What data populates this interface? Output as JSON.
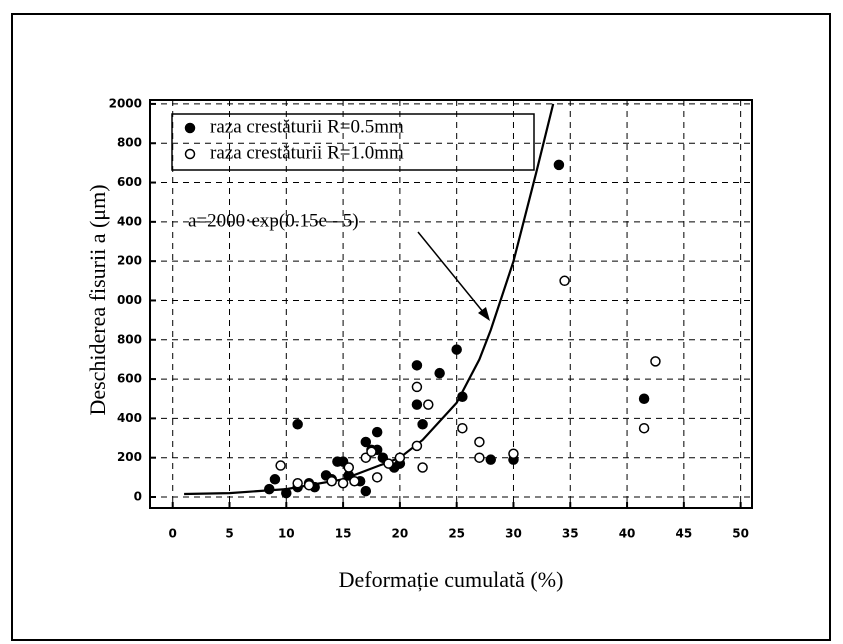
{
  "chart_data": {
    "type": "scatter",
    "xlabel": "Deformație cumulată (%)",
    "ylabel": "Deschiderea fisurii  a (μm)",
    "xlim": [
      -2,
      51
    ],
    "ylim": [
      -56,
      2020
    ],
    "xticks": [
      0,
      5,
      10,
      15,
      20,
      25,
      30,
      35,
      40,
      45,
      50
    ],
    "yticks": [
      0,
      {
        "value": 200,
        "label": "200"
      },
      {
        "value": 400,
        "label": "400"
      },
      {
        "value": 600,
        "label": "600"
      },
      {
        "value": 800,
        "label": "800"
      },
      {
        "value": 1000,
        "label": "000"
      },
      {
        "value": 1200,
        "label": "200"
      },
      {
        "value": 1400,
        "label": "400"
      },
      {
        "value": 1600,
        "label": "600"
      },
      {
        "value": 1800,
        "label": "800"
      },
      2000
    ],
    "grid": true,
    "legend": "upper left",
    "annotation": "a=2000·exp(0.15e - 5)",
    "series": [
      {
        "name": "raza crestăturii  R=0.5mm",
        "color": "#000000",
        "filled": true,
        "x": [
          8.5,
          9,
          10,
          11,
          11,
          12,
          12.5,
          13.5,
          14,
          14.5,
          15,
          15.5,
          16.5,
          17,
          17,
          17.5,
          18,
          18,
          18.5,
          19.5,
          20,
          21.5,
          21.5,
          22,
          23.5,
          25,
          25.5,
          28,
          30,
          34,
          41.5
        ],
        "values": [
          40,
          90,
          20,
          370,
          50,
          70,
          50,
          110,
          90,
          180,
          180,
          110,
          80,
          30,
          280,
          240,
          330,
          240,
          200,
          150,
          170,
          670,
          470,
          370,
          630,
          750,
          510,
          190,
          190,
          1690,
          500
        ]
      },
      {
        "name": "raza crestăturii  R=1.0mm",
        "color": "#000000",
        "filled": false,
        "x": [
          9.5,
          11,
          12,
          14,
          15,
          15.5,
          16,
          17,
          17.5,
          18,
          19,
          20,
          21.5,
          21.5,
          22,
          22.5,
          25.5,
          27,
          27,
          30,
          34.5,
          41.5,
          42.5
        ],
        "values": [
          160,
          70,
          60,
          80,
          70,
          150,
          80,
          200,
          230,
          100,
          170,
          200,
          560,
          260,
          150,
          470,
          350,
          280,
          200,
          220,
          1100,
          350,
          690
        ]
      }
    ],
    "curve": {
      "x": [
        1,
        5,
        10,
        15,
        20,
        22,
        25,
        27,
        28,
        30,
        32,
        33.5
      ],
      "values": [
        15,
        20,
        40,
        90,
        200,
        290,
        480,
        700,
        850,
        1200,
        1650,
        2000
      ]
    }
  }
}
